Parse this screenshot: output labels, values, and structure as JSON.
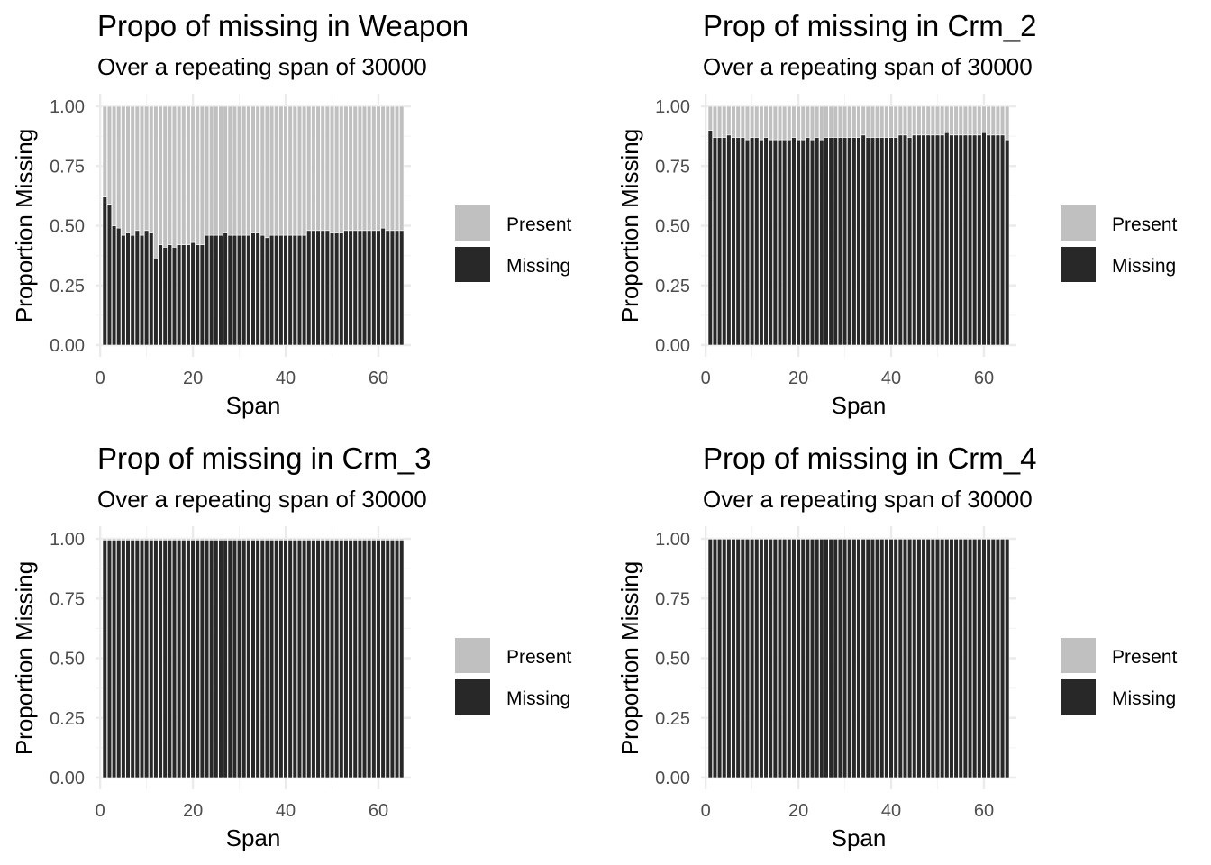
{
  "colors": {
    "missing": "#282828",
    "present": "#c0c0c0",
    "grid_major": "#ebebeb",
    "grid_minor": "#f5f5f5",
    "tick_text": "#4d4d4d"
  },
  "chart_data": [
    {
      "type": "bar",
      "stacked": true,
      "title": "Propo of missing in Weapon",
      "subtitle": "Over a repeating span of 30000",
      "xlabel": "Span",
      "ylabel": "Proportion Missing",
      "x": [
        1,
        2,
        3,
        4,
        5,
        6,
        7,
        8,
        9,
        10,
        11,
        12,
        13,
        14,
        15,
        16,
        17,
        18,
        19,
        20,
        21,
        22,
        23,
        24,
        25,
        26,
        27,
        28,
        29,
        30,
        31,
        32,
        33,
        34,
        35,
        36,
        37,
        38,
        39,
        40,
        41,
        42,
        43,
        44,
        45,
        46,
        47,
        48,
        49,
        50,
        51,
        52,
        53,
        54,
        55,
        56,
        57,
        58,
        59,
        60,
        61,
        62,
        63,
        64,
        65
      ],
      "xlim": [
        -1,
        67
      ],
      "ylim": [
        0,
        1
      ],
      "xticks": [
        0,
        20,
        40,
        60
      ],
      "yticks": [
        "0.00",
        "0.25",
        "0.50",
        "0.75",
        "1.00"
      ],
      "series": [
        {
          "name": "Missing",
          "values": [
            0.62,
            0.59,
            0.5,
            0.49,
            0.46,
            0.47,
            0.46,
            0.48,
            0.46,
            0.48,
            0.47,
            0.36,
            0.42,
            0.41,
            0.42,
            0.41,
            0.42,
            0.42,
            0.42,
            0.43,
            0.42,
            0.42,
            0.46,
            0.46,
            0.46,
            0.46,
            0.47,
            0.46,
            0.46,
            0.46,
            0.46,
            0.46,
            0.47,
            0.47,
            0.46,
            0.45,
            0.46,
            0.46,
            0.46,
            0.46,
            0.46,
            0.46,
            0.46,
            0.46,
            0.48,
            0.48,
            0.48,
            0.48,
            0.48,
            0.47,
            0.47,
            0.47,
            0.48,
            0.48,
            0.48,
            0.48,
            0.48,
            0.48,
            0.48,
            0.48,
            0.49,
            0.48,
            0.48,
            0.48,
            0.48
          ]
        },
        {
          "name": "Present",
          "values": [
            0.38,
            0.41,
            0.5,
            0.51,
            0.54,
            0.53,
            0.54,
            0.52,
            0.54,
            0.52,
            0.53,
            0.64,
            0.58,
            0.59,
            0.58,
            0.59,
            0.58,
            0.58,
            0.58,
            0.57,
            0.58,
            0.58,
            0.54,
            0.54,
            0.54,
            0.54,
            0.53,
            0.54,
            0.54,
            0.54,
            0.54,
            0.54,
            0.53,
            0.53,
            0.54,
            0.55,
            0.54,
            0.54,
            0.54,
            0.54,
            0.54,
            0.54,
            0.54,
            0.54,
            0.52,
            0.52,
            0.52,
            0.52,
            0.52,
            0.53,
            0.53,
            0.53,
            0.52,
            0.52,
            0.52,
            0.52,
            0.52,
            0.52,
            0.52,
            0.52,
            0.51,
            0.52,
            0.52,
            0.52,
            0.52
          ]
        }
      ],
      "legend": [
        "Present",
        "Missing"
      ],
      "legend_position": "right",
      "grid": true
    },
    {
      "type": "bar",
      "stacked": true,
      "title": "Prop of missing in Crm_2",
      "subtitle": "Over a repeating span of 30000",
      "xlabel": "Span",
      "ylabel": "Proportion Missing",
      "x": [
        1,
        2,
        3,
        4,
        5,
        6,
        7,
        8,
        9,
        10,
        11,
        12,
        13,
        14,
        15,
        16,
        17,
        18,
        19,
        20,
        21,
        22,
        23,
        24,
        25,
        26,
        27,
        28,
        29,
        30,
        31,
        32,
        33,
        34,
        35,
        36,
        37,
        38,
        39,
        40,
        41,
        42,
        43,
        44,
        45,
        46,
        47,
        48,
        49,
        50,
        51,
        52,
        53,
        54,
        55,
        56,
        57,
        58,
        59,
        60,
        61,
        62,
        63,
        64,
        65
      ],
      "xlim": [
        -1,
        67
      ],
      "ylim": [
        0,
        1
      ],
      "xticks": [
        0,
        20,
        40,
        60
      ],
      "yticks": [
        "0.00",
        "0.25",
        "0.50",
        "0.75",
        "1.00"
      ],
      "series": [
        {
          "name": "Missing",
          "values": [
            0.9,
            0.87,
            0.87,
            0.87,
            0.88,
            0.87,
            0.87,
            0.87,
            0.86,
            0.87,
            0.87,
            0.86,
            0.87,
            0.86,
            0.86,
            0.86,
            0.86,
            0.86,
            0.87,
            0.86,
            0.86,
            0.87,
            0.86,
            0.87,
            0.86,
            0.87,
            0.87,
            0.87,
            0.87,
            0.87,
            0.87,
            0.87,
            0.87,
            0.88,
            0.87,
            0.87,
            0.87,
            0.87,
            0.87,
            0.87,
            0.87,
            0.88,
            0.88,
            0.87,
            0.88,
            0.88,
            0.88,
            0.88,
            0.88,
            0.88,
            0.88,
            0.89,
            0.88,
            0.88,
            0.88,
            0.88,
            0.88,
            0.88,
            0.88,
            0.89,
            0.88,
            0.88,
            0.88,
            0.88,
            0.86
          ]
        },
        {
          "name": "Present",
          "values": [
            0.1,
            0.13,
            0.13,
            0.13,
            0.12,
            0.13,
            0.13,
            0.13,
            0.14,
            0.13,
            0.13,
            0.14,
            0.13,
            0.14,
            0.14,
            0.14,
            0.14,
            0.14,
            0.13,
            0.14,
            0.14,
            0.13,
            0.14,
            0.13,
            0.14,
            0.13,
            0.13,
            0.13,
            0.13,
            0.13,
            0.13,
            0.13,
            0.13,
            0.12,
            0.13,
            0.13,
            0.13,
            0.13,
            0.13,
            0.13,
            0.13,
            0.12,
            0.12,
            0.13,
            0.12,
            0.12,
            0.12,
            0.12,
            0.12,
            0.12,
            0.12,
            0.11,
            0.12,
            0.12,
            0.12,
            0.12,
            0.12,
            0.12,
            0.12,
            0.11,
            0.12,
            0.12,
            0.12,
            0.12,
            0.14
          ]
        }
      ],
      "legend": [
        "Present",
        "Missing"
      ],
      "legend_position": "right",
      "grid": true
    },
    {
      "type": "bar",
      "stacked": true,
      "title": "Prop of missing in Crm_3",
      "subtitle": "Over a repeating span of 30000",
      "xlabel": "Span",
      "ylabel": "Proportion Missing",
      "x": [
        1,
        2,
        3,
        4,
        5,
        6,
        7,
        8,
        9,
        10,
        11,
        12,
        13,
        14,
        15,
        16,
        17,
        18,
        19,
        20,
        21,
        22,
        23,
        24,
        25,
        26,
        27,
        28,
        29,
        30,
        31,
        32,
        33,
        34,
        35,
        36,
        37,
        38,
        39,
        40,
        41,
        42,
        43,
        44,
        45,
        46,
        47,
        48,
        49,
        50,
        51,
        52,
        53,
        54,
        55,
        56,
        57,
        58,
        59,
        60,
        61,
        62,
        63,
        64,
        65
      ],
      "xlim": [
        -1,
        67
      ],
      "ylim": [
        0,
        1
      ],
      "xticks": [
        0,
        20,
        40,
        60
      ],
      "yticks": [
        "0.00",
        "0.25",
        "0.50",
        "0.75",
        "1.00"
      ],
      "series": [
        {
          "name": "Missing",
          "values": [
            0.995,
            0.995,
            0.995,
            0.995,
            0.995,
            0.995,
            0.995,
            0.995,
            0.995,
            0.995,
            0.995,
            0.995,
            0.995,
            0.995,
            0.995,
            0.995,
            0.995,
            0.995,
            0.995,
            0.995,
            0.995,
            0.995,
            0.995,
            0.995,
            0.995,
            0.995,
            0.995,
            0.995,
            0.995,
            0.995,
            0.995,
            0.995,
            0.995,
            0.995,
            0.995,
            0.995,
            0.995,
            0.995,
            0.995,
            0.995,
            0.995,
            0.995,
            0.995,
            0.995,
            0.995,
            0.995,
            0.995,
            0.995,
            0.995,
            0.995,
            0.995,
            0.995,
            0.995,
            0.995,
            0.995,
            0.995,
            0.995,
            0.995,
            0.995,
            0.995,
            0.995,
            0.995,
            0.995,
            0.995,
            0.995
          ]
        },
        {
          "name": "Present",
          "values": [
            0.005,
            0.005,
            0.005,
            0.005,
            0.005,
            0.005,
            0.005,
            0.005,
            0.005,
            0.005,
            0.005,
            0.005,
            0.005,
            0.005,
            0.005,
            0.005,
            0.005,
            0.005,
            0.005,
            0.005,
            0.005,
            0.005,
            0.005,
            0.005,
            0.005,
            0.005,
            0.005,
            0.005,
            0.005,
            0.005,
            0.005,
            0.005,
            0.005,
            0.005,
            0.005,
            0.005,
            0.005,
            0.005,
            0.005,
            0.005,
            0.005,
            0.005,
            0.005,
            0.005,
            0.005,
            0.005,
            0.005,
            0.005,
            0.005,
            0.005,
            0.005,
            0.005,
            0.005,
            0.005,
            0.005,
            0.005,
            0.005,
            0.005,
            0.005,
            0.005,
            0.005,
            0.005,
            0.005,
            0.005,
            0.005
          ]
        }
      ],
      "legend": [
        "Present",
        "Missing"
      ],
      "legend_position": "right",
      "grid": true
    },
    {
      "type": "bar",
      "stacked": true,
      "title": "Prop of missing in Crm_4",
      "subtitle": "Over a repeating span of 30000",
      "xlabel": "Span",
      "ylabel": "Proportion Missing",
      "x": [
        1,
        2,
        3,
        4,
        5,
        6,
        7,
        8,
        9,
        10,
        11,
        12,
        13,
        14,
        15,
        16,
        17,
        18,
        19,
        20,
        21,
        22,
        23,
        24,
        25,
        26,
        27,
        28,
        29,
        30,
        31,
        32,
        33,
        34,
        35,
        36,
        37,
        38,
        39,
        40,
        41,
        42,
        43,
        44,
        45,
        46,
        47,
        48,
        49,
        50,
        51,
        52,
        53,
        54,
        55,
        56,
        57,
        58,
        59,
        60,
        61,
        62,
        63,
        64,
        65
      ],
      "xlim": [
        -1,
        67
      ],
      "ylim": [
        0,
        1
      ],
      "xticks": [
        0,
        20,
        40,
        60
      ],
      "yticks": [
        "0.00",
        "0.25",
        "0.50",
        "0.75",
        "1.00"
      ],
      "series": [
        {
          "name": "Missing",
          "values": [
            0.999,
            0.999,
            0.999,
            0.999,
            0.999,
            0.999,
            0.999,
            0.999,
            0.999,
            0.999,
            0.999,
            0.999,
            0.999,
            0.999,
            0.999,
            0.999,
            0.999,
            0.999,
            0.999,
            0.999,
            0.999,
            0.999,
            0.999,
            0.999,
            0.999,
            0.999,
            0.999,
            0.999,
            0.999,
            0.999,
            0.999,
            0.999,
            0.999,
            0.999,
            0.999,
            0.999,
            0.999,
            0.999,
            0.999,
            0.999,
            0.999,
            0.999,
            0.999,
            0.999,
            0.999,
            0.999,
            0.999,
            0.999,
            0.999,
            0.999,
            0.999,
            0.999,
            0.999,
            0.999,
            0.999,
            0.999,
            0.999,
            0.999,
            0.999,
            0.999,
            0.999,
            0.999,
            0.999,
            0.999,
            0.999
          ]
        },
        {
          "name": "Present",
          "values": [
            0.001,
            0.001,
            0.001,
            0.001,
            0.001,
            0.001,
            0.001,
            0.001,
            0.001,
            0.001,
            0.001,
            0.001,
            0.001,
            0.001,
            0.001,
            0.001,
            0.001,
            0.001,
            0.001,
            0.001,
            0.001,
            0.001,
            0.001,
            0.001,
            0.001,
            0.001,
            0.001,
            0.001,
            0.001,
            0.001,
            0.001,
            0.001,
            0.001,
            0.001,
            0.001,
            0.001,
            0.001,
            0.001,
            0.001,
            0.001,
            0.001,
            0.001,
            0.001,
            0.001,
            0.001,
            0.001,
            0.001,
            0.001,
            0.001,
            0.001,
            0.001,
            0.001,
            0.001,
            0.001,
            0.001,
            0.001,
            0.001,
            0.001,
            0.001,
            0.001,
            0.001,
            0.001,
            0.001,
            0.001,
            0.001
          ]
        }
      ],
      "legend": [
        "Present",
        "Missing"
      ],
      "legend_position": "right",
      "grid": true
    }
  ]
}
